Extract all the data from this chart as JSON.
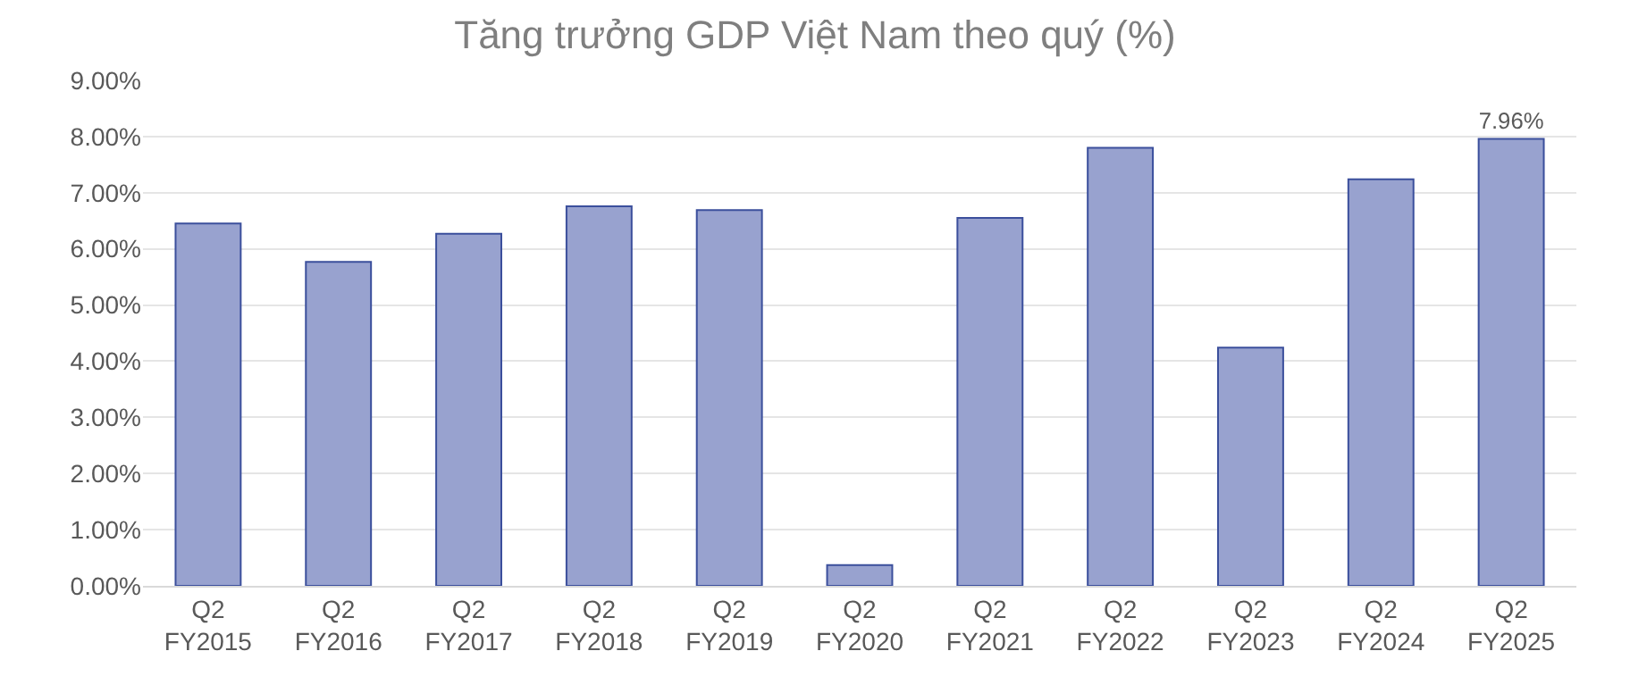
{
  "chart_data": {
    "type": "bar",
    "title": "Tăng trưởng GDP Việt Nam theo quý (%)",
    "categories": [
      "Q2 FY2015",
      "Q2 FY2016",
      "Q2 FY2017",
      "Q2 FY2018",
      "Q2 FY2019",
      "Q2 FY2020",
      "Q2 FY2021",
      "Q2 FY2022",
      "Q2 FY2023",
      "Q2 FY2024",
      "Q2 FY2025"
    ],
    "values": [
      6.45,
      5.77,
      6.27,
      6.76,
      6.69,
      0.37,
      6.55,
      7.8,
      4.24,
      7.24,
      7.96
    ],
    "value_labels": [
      null,
      null,
      null,
      null,
      null,
      null,
      null,
      null,
      null,
      null,
      "7.96%"
    ],
    "color": "#98a2cf",
    "ylim": [
      0,
      9
    ],
    "yticks": [
      {
        "value": 0,
        "label": "0.00%"
      },
      {
        "value": 1,
        "label": "1.00%"
      },
      {
        "value": 2,
        "label": "2.00%"
      },
      {
        "value": 3,
        "label": "3.00%"
      },
      {
        "value": 4,
        "label": "4.00%"
      },
      {
        "value": 5,
        "label": "5.00%"
      },
      {
        "value": 6,
        "label": "6.00%"
      },
      {
        "value": 7,
        "label": "7.00%"
      },
      {
        "value": 8,
        "label": "8.00%"
      },
      {
        "value": 9,
        "label": "9.00%"
      }
    ],
    "grid": "y",
    "legend": false
  }
}
